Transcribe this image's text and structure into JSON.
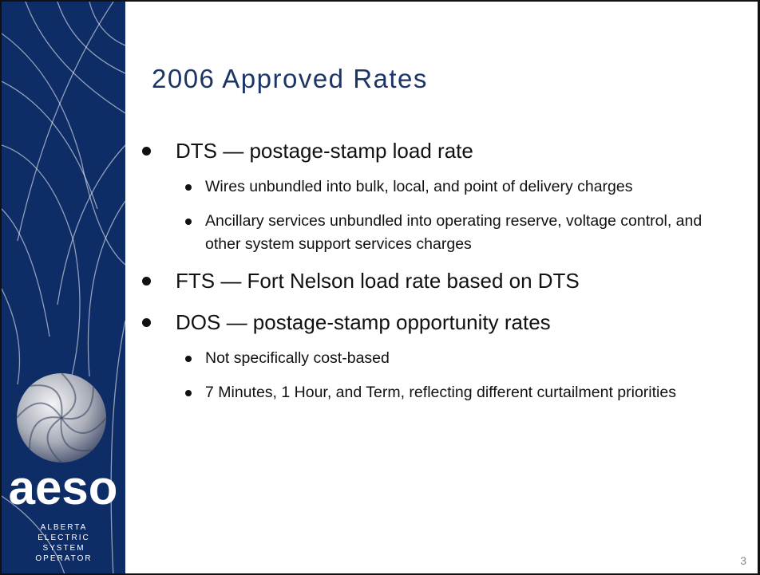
{
  "sidebar": {
    "logo": "aeso",
    "org": [
      "ALBERTA",
      "ELECTRIC",
      "SYSTEM",
      "OPERATOR"
    ]
  },
  "title": "2006 Approved Rates",
  "bullets": [
    {
      "text": "DTS — postage-stamp load rate",
      "sub": [
        "Wires unbundled into bulk, local, and point of delivery charges",
        "Ancillary services unbundled into operating reserve, voltage control, and other system support services charges"
      ]
    },
    {
      "text": "FTS — Fort Nelson load rate based on DTS",
      "sub": []
    },
    {
      "text": "DOS — postage-stamp opportunity rates",
      "sub": [
        "Not specifically cost-based",
        "7 Minutes, 1 Hour, and Term, reflecting different curtailment priorities"
      ]
    }
  ],
  "page_number": "3"
}
